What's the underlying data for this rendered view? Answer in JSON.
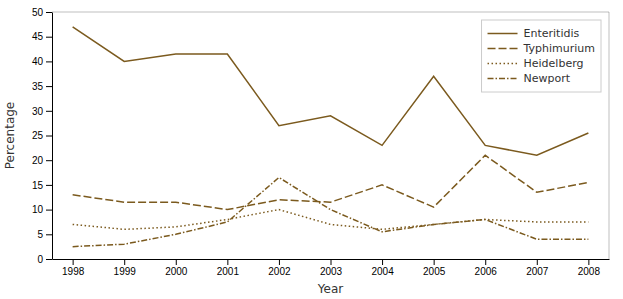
{
  "chart_data": {
    "type": "line",
    "xlabel": "Year",
    "ylabel": "Percentage",
    "x": [
      1998,
      1999,
      2000,
      2001,
      2002,
      2003,
      2004,
      2005,
      2006,
      2007,
      2008
    ],
    "series": [
      {
        "name": "Enteritidis",
        "color": "#7b5a1e",
        "line_style": "solid",
        "values": [
          47,
          40,
          41.5,
          41.5,
          27,
          29,
          23,
          37,
          23,
          21,
          25.5
        ]
      },
      {
        "name": "Typhimurium",
        "color": "#7b5a1e",
        "line_style": "dashed",
        "values": [
          13,
          11.5,
          11.5,
          10,
          12,
          11.5,
          15,
          10.5,
          21,
          13.5,
          15.5
        ]
      },
      {
        "name": "Heidelberg",
        "color": "#7b5a1e",
        "line_style": "dotted",
        "values": [
          7,
          6,
          6.5,
          8,
          10,
          7,
          6,
          7,
          8,
          7.5,
          7.5
        ]
      },
      {
        "name": "Newport",
        "color": "#7b5a1e",
        "line_style": "dashdot",
        "values": [
          2.5,
          3,
          5,
          7.5,
          16.5,
          10,
          5.5,
          7,
          8,
          4,
          4
        ]
      }
    ],
    "xlim": [
      1997.6,
      2008.4
    ],
    "ylim": [
      0,
      50
    ],
    "xticks": [
      1998,
      1999,
      2000,
      2001,
      2002,
      2003,
      2004,
      2005,
      2006,
      2007,
      2008
    ],
    "yticks": [
      0,
      5,
      10,
      15,
      20,
      25,
      30,
      35,
      40,
      45,
      50
    ],
    "grid": false,
    "legend": "top-right"
  }
}
